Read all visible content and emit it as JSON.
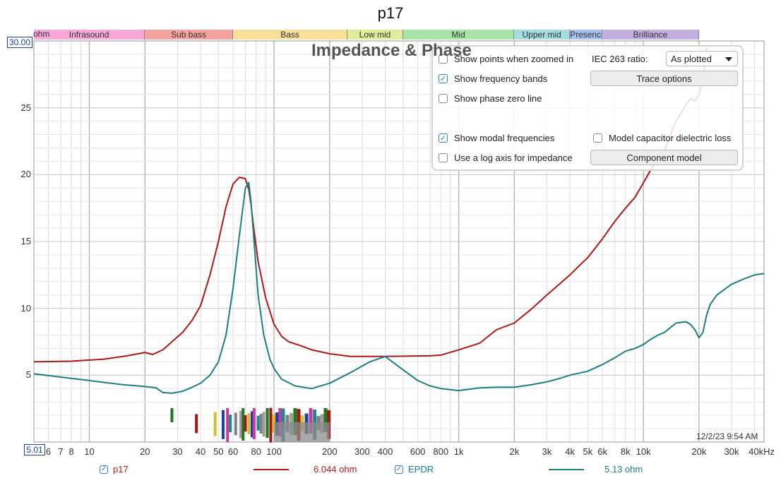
{
  "window_title": "p17",
  "chart_heading": "Impedance & Phase",
  "bands": [
    {
      "label": "Infrasound",
      "color": "#f7a8d8",
      "f0": 5.01,
      "f1": 20
    },
    {
      "label": "Sub bass",
      "color": "#f4a3a0",
      "f0": 20,
      "f1": 60
    },
    {
      "label": "Bass",
      "color": "#f8e09a",
      "f0": 60,
      "f1": 250
    },
    {
      "label": "Low mid",
      "color": "#e0ec9c",
      "f0": 250,
      "f1": 500
    },
    {
      "label": "Mid",
      "color": "#a8e4a8",
      "f0": 500,
      "f1": 2000
    },
    {
      "label": "Upper mid",
      "color": "#a4dce0",
      "f0": 2000,
      "f1": 4000
    },
    {
      "label": "Presence",
      "color": "#a8c0ee",
      "f0": 4000,
      "f1": 6000
    },
    {
      "label": "Brilliance",
      "color": "#c4aee0",
      "f0": 6000,
      "f1": 20000
    }
  ],
  "unit_label": "ohm",
  "y_max_label": "30.00",
  "x_min_label": "5.01",
  "y_tick_labels": [
    "25",
    "20",
    "15",
    "10",
    "5"
  ],
  "x_tick_labels": [
    "6",
    "7",
    "8",
    "10",
    "20",
    "30",
    "40",
    "50",
    "60",
    "80",
    "100",
    "200",
    "300",
    "400",
    "600",
    "800",
    "1k",
    "2k",
    "3k",
    "4k",
    "5k",
    "6k",
    "8k",
    "10k",
    "20k",
    "30k",
    "40kHz"
  ],
  "timestamp": "12/2/23 9:54 AM",
  "options": {
    "show_points": "Show points when zoomed in",
    "show_bands": "Show frequency bands",
    "show_phase_zero": "Show phase zero line",
    "show_modal": "Show modal frequencies",
    "log_axis": "Use a log axis for impedance",
    "iec_label": "IEC 263 ratio:",
    "iec_value": "As plotted",
    "trace_options": "Trace options",
    "dielectric": "Model capacitor dielectric loss",
    "component_model": "Component model",
    "checked": {
      "show_points": false,
      "show_bands": true,
      "show_phase_zero": false,
      "show_modal": true,
      "log_axis": false,
      "dielectric": false
    }
  },
  "legend": [
    {
      "name": "p17",
      "value": "6.044 ohm",
      "color": "#b01818"
    },
    {
      "name": "EPDR",
      "value": "5.13 ohm",
      "color": "#1a8080"
    }
  ],
  "chart_data": {
    "type": "line",
    "xscale": "log",
    "xlim": [
      5.01,
      45000
    ],
    "ylim": [
      0,
      30
    ],
    "ylabel": "ohm",
    "series": [
      {
        "name": "p17",
        "color": "#b01818",
        "x": [
          5.01,
          8,
          12,
          16,
          20,
          22,
          25,
          28,
          32,
          36,
          40,
          45,
          50,
          55,
          60,
          65,
          70,
          73,
          75,
          78,
          82,
          90,
          100,
          110,
          120,
          140,
          160,
          200,
          260,
          400,
          700,
          800,
          1000,
          1300,
          1600,
          2000,
          2500,
          3000,
          3500,
          4000,
          4500,
          5000,
          6000,
          7000,
          8000,
          9000,
          10000,
          11000,
          12000,
          13000,
          14000,
          15000,
          16000,
          17000,
          18000,
          19000,
          20000,
          21000,
          22000
        ],
        "y": [
          6.0,
          6.05,
          6.2,
          6.45,
          6.7,
          6.55,
          6.9,
          7.5,
          8.2,
          9.1,
          10.2,
          12.5,
          15.0,
          17.6,
          19.3,
          19.8,
          19.7,
          18.9,
          17.8,
          15.8,
          13.5,
          10.8,
          8.8,
          7.9,
          7.5,
          7.2,
          6.9,
          6.6,
          6.4,
          6.4,
          6.45,
          6.5,
          6.9,
          7.4,
          8.4,
          8.9,
          10.0,
          11.0,
          11.8,
          12.5,
          13.2,
          13.8,
          15.2,
          16.5,
          17.5,
          18.3,
          19.4,
          20.4,
          21.2,
          21.8,
          23.0,
          24.0,
          24.6,
          25.2,
          25.7,
          25.5,
          26.0,
          27.0,
          29.5
        ]
      },
      {
        "name": "EPDR",
        "color": "#1a8080",
        "x": [
          5.01,
          10,
          15,
          20,
          23,
          25,
          28,
          32,
          36,
          40,
          45,
          50,
          55,
          60,
          65,
          70,
          73,
          75,
          78,
          82,
          88,
          95,
          100,
          110,
          130,
          160,
          200,
          260,
          330,
          400,
          500,
          600,
          700,
          800,
          1000,
          1300,
          1600,
          2000,
          2500,
          3000,
          3500,
          4000,
          5000,
          6000,
          7000,
          8000,
          9000,
          10000,
          11000,
          12000,
          13000,
          15000,
          17000,
          18000,
          19000,
          20000,
          21000,
          22000,
          23000,
          25000,
          30000,
          35000,
          40000,
          45000
        ],
        "y": [
          5.1,
          4.6,
          4.3,
          4.15,
          4.05,
          3.7,
          3.65,
          3.8,
          4.1,
          4.4,
          5.0,
          6.0,
          8.0,
          11.5,
          15.5,
          19.0,
          19.4,
          18.0,
          15.0,
          11.0,
          8.0,
          6.2,
          5.5,
          4.7,
          4.2,
          4.0,
          4.4,
          5.2,
          6.0,
          6.4,
          5.4,
          4.6,
          4.2,
          4.0,
          3.85,
          4.05,
          4.1,
          4.1,
          4.3,
          4.5,
          4.75,
          5.0,
          5.3,
          5.8,
          6.3,
          6.8,
          7.0,
          7.3,
          7.7,
          8.0,
          8.2,
          8.9,
          9.0,
          8.8,
          8.4,
          7.8,
          8.2,
          9.5,
          10.3,
          11.0,
          11.8,
          12.2,
          12.5,
          12.6
        ]
      }
    ],
    "modal_bars": {
      "colors": [
        "#1f7a1f",
        "#a31717",
        "#d4c02a",
        "#1a3fa8",
        "#c83aa0",
        "#1a8a8a",
        "#808080",
        "#a0a0a0"
      ],
      "freqs": [
        28,
        38,
        48,
        53,
        56,
        58,
        62,
        66,
        68,
        70,
        73,
        76,
        78,
        82,
        85,
        88,
        92,
        96,
        100,
        104,
        108,
        112,
        118,
        124,
        130,
        136,
        142,
        150,
        158,
        166,
        174,
        182,
        190,
        198
      ]
    }
  }
}
